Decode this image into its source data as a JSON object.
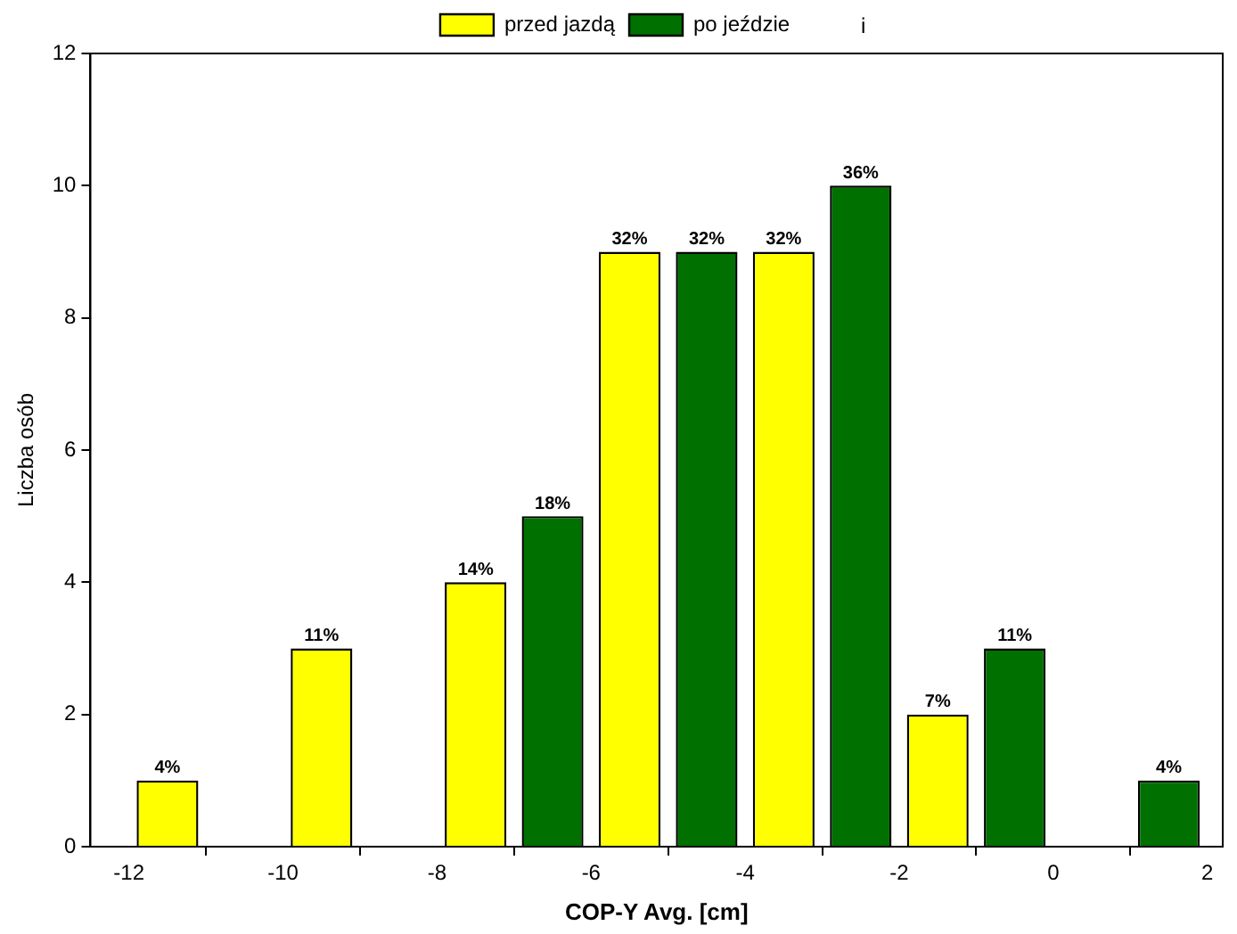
{
  "chart_data": {
    "type": "bar",
    "xlabel": "COP-Y Avg. [cm]",
    "ylabel": "Liczba osób",
    "series": [
      {
        "name": "przed jazdą",
        "color": "#ffff00",
        "x": [
          -11.5,
          -9.5,
          -7.5,
          -5.5,
          -3.5,
          -1.5
        ],
        "values": [
          1,
          3,
          4,
          9,
          9,
          2
        ]
      },
      {
        "name": "po jeździe",
        "color": "#007000",
        "x": [
          -6.5,
          -4.5,
          -2.5,
          -0.5,
          1.5
        ],
        "values": [
          5,
          9,
          10,
          3,
          1
        ]
      }
    ],
    "xlim": [
      -12.5,
      2.2
    ],
    "xticks": [
      -12,
      -10,
      -8,
      -6,
      -4,
      -2,
      0,
      2
    ],
    "ylim": [
      0,
      12
    ],
    "yticks": [
      0,
      2,
      4,
      6,
      8,
      10,
      12
    ],
    "grid": false,
    "legend": "top",
    "annotations": [
      "i",
      {
        "text": "4%",
        "x": -11.5,
        "y": 1
      },
      {
        "text": "11%",
        "x": -9.5,
        "y": 3
      },
      {
        "text": "14%",
        "x": -7.5,
        "y": 4
      },
      {
        "text": "18%",
        "x": -6.5,
        "y": 5
      },
      {
        "text": "32%",
        "x": -5.5,
        "y": 9
      },
      {
        "text": "32%",
        "x": -4.5,
        "y": 9
      },
      {
        "text": "32%",
        "x": -3.5,
        "y": 9
      },
      {
        "text": "36%",
        "x": -2.5,
        "y": 10
      },
      {
        "text": "7%",
        "x": -1.5,
        "y": 2
      },
      {
        "text": "11%",
        "x": -0.5,
        "y": 3
      },
      {
        "text": "4%",
        "x": 1.5,
        "y": 1
      }
    ]
  }
}
